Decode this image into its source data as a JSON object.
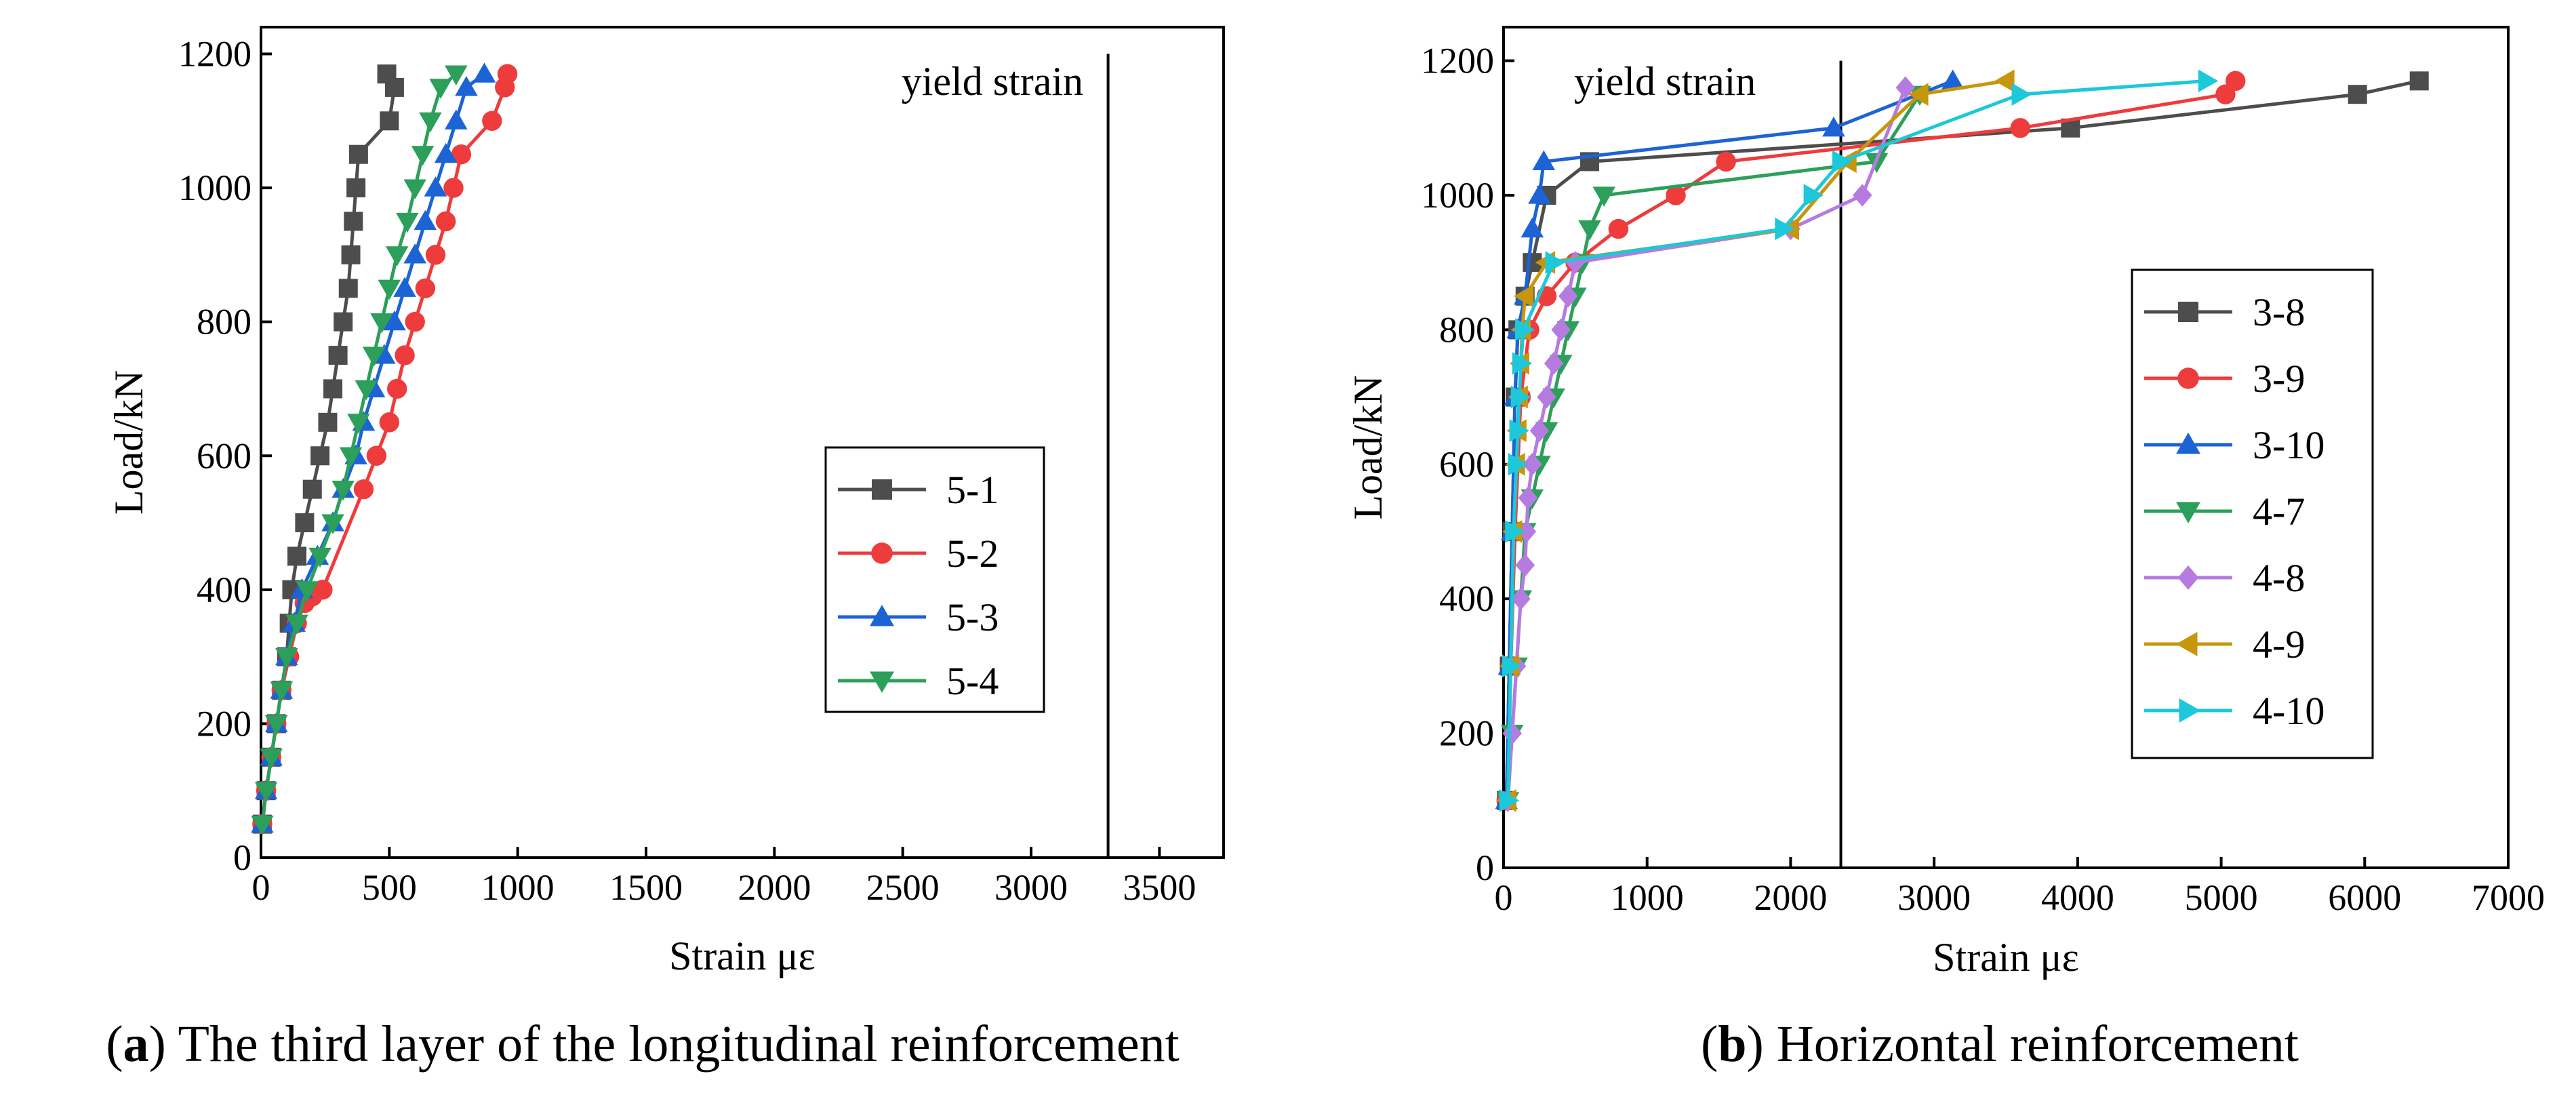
{
  "chart_data": [
    {
      "id": "a",
      "type": "line",
      "xlabel": "Strain με",
      "ylabel": "Load/kN",
      "xlim": [
        0,
        3750
      ],
      "ylim": [
        0,
        1240
      ],
      "xticks": [
        0,
        500,
        1000,
        1500,
        2000,
        2500,
        3000,
        3500
      ],
      "yticks": [
        0,
        200,
        400,
        600,
        800,
        1000,
        1200
      ],
      "annotation": "yield  strain",
      "yield_strain": 3300,
      "caption_letter": "a",
      "caption_text": " The third layer of the longitudinal reinforcement",
      "series": [
        {
          "name": "5-1",
          "color": "#4d4d4d",
          "marker": "square",
          "x": [
            5,
            20,
            40,
            60,
            80,
            100,
            110,
            120,
            140,
            170,
            200,
            230,
            260,
            280,
            300,
            320,
            340,
            350,
            360,
            370,
            380,
            500,
            520,
            490
          ],
          "y": [
            50,
            100,
            150,
            200,
            250,
            300,
            350,
            400,
            450,
            500,
            550,
            600,
            650,
            700,
            750,
            800,
            850,
            900,
            950,
            1000,
            1050,
            1100,
            1150,
            1170
          ]
        },
        {
          "name": "5-2",
          "color": "#ee3b3b",
          "marker": "circle",
          "x": [
            5,
            20,
            40,
            60,
            80,
            110,
            140,
            170,
            200,
            240,
            400,
            450,
            500,
            530,
            560,
            600,
            640,
            680,
            720,
            750,
            780,
            900,
            950,
            960
          ],
          "y": [
            50,
            100,
            150,
            200,
            250,
            300,
            350,
            380,
            390,
            400,
            550,
            600,
            650,
            700,
            750,
            800,
            850,
            900,
            950,
            1000,
            1050,
            1100,
            1150,
            1170
          ]
        },
        {
          "name": "5-3",
          "color": "#1c63d6",
          "marker": "triangle-up",
          "x": [
            5,
            20,
            40,
            60,
            80,
            100,
            130,
            160,
            220,
            280,
            320,
            370,
            400,
            440,
            480,
            520,
            560,
            600,
            640,
            680,
            720,
            760,
            800,
            870
          ],
          "y": [
            50,
            100,
            150,
            200,
            250,
            300,
            350,
            400,
            450,
            500,
            550,
            600,
            650,
            700,
            750,
            800,
            850,
            900,
            950,
            1000,
            1050,
            1100,
            1150,
            1170
          ]
        },
        {
          "name": "5-4",
          "color": "#2ca05a",
          "marker": "triangle-down",
          "x": [
            5,
            20,
            40,
            60,
            80,
            100,
            140,
            180,
            230,
            280,
            320,
            350,
            380,
            410,
            440,
            470,
            500,
            530,
            570,
            600,
            630,
            660,
            700,
            760
          ],
          "y": [
            50,
            100,
            150,
            200,
            250,
            300,
            350,
            400,
            450,
            500,
            550,
            600,
            650,
            700,
            750,
            800,
            850,
            900,
            950,
            1000,
            1050,
            1100,
            1150,
            1170
          ]
        }
      ]
    },
    {
      "id": "b",
      "type": "line",
      "xlabel": "Strain  με",
      "ylabel": "Load/kN",
      "xlim": [
        0,
        7000
      ],
      "ylim": [
        0,
        1250
      ],
      "xticks": [
        0,
        1000,
        2000,
        3000,
        4000,
        5000,
        6000,
        7000
      ],
      "yticks": [
        0,
        200,
        400,
        600,
        800,
        1000,
        1200
      ],
      "annotation": "yield strain",
      "yield_strain": 2350,
      "caption_letter": "b",
      "caption_text": " Horizontal reinforcement",
      "series": [
        {
          "name": "3-8",
          "color": "#4d4d4d",
          "marker": "square",
          "x": [
            20,
            40,
            60,
            80,
            100,
            150,
            200,
            300,
            600,
            3950,
            5950,
            6380
          ],
          "y": [
            100,
            300,
            500,
            700,
            800,
            850,
            900,
            1000,
            1050,
            1100,
            1150,
            1170
          ]
        },
        {
          "name": "3-9",
          "color": "#ee3b3b",
          "marker": "circle",
          "x": [
            20,
            50,
            80,
            120,
            180,
            300,
            500,
            800,
            1200,
            1550,
            3600,
            5030,
            5100
          ],
          "y": [
            100,
            300,
            500,
            700,
            800,
            850,
            900,
            950,
            1000,
            1050,
            1100,
            1150,
            1170
          ]
        },
        {
          "name": "3-10",
          "color": "#1c63d6",
          "marker": "triangle-up",
          "x": [
            20,
            40,
            60,
            80,
            100,
            150,
            200,
            250,
            280,
            2300,
            3130
          ],
          "y": [
            100,
            300,
            500,
            700,
            800,
            850,
            950,
            1000,
            1050,
            1100,
            1170
          ]
        },
        {
          "name": "4-7",
          "color": "#2ca05a",
          "marker": "triangle-down",
          "x": [
            30,
            60,
            90,
            120,
            150,
            200,
            250,
            300,
            350,
            400,
            450,
            500,
            550,
            600,
            700,
            2600,
            2900
          ],
          "y": [
            100,
            200,
            300,
            400,
            500,
            550,
            600,
            650,
            700,
            750,
            800,
            850,
            900,
            950,
            1000,
            1050,
            1150
          ]
        },
        {
          "name": "4-8",
          "color": "#b57be0",
          "marker": "diamond",
          "x": [
            30,
            60,
            90,
            120,
            150,
            160,
            170,
            200,
            250,
            300,
            350,
            400,
            450,
            500,
            2000,
            2500,
            2800
          ],
          "y": [
            100,
            200,
            300,
            400,
            450,
            500,
            550,
            600,
            650,
            700,
            750,
            800,
            850,
            900,
            950,
            1000,
            1160
          ]
        },
        {
          "name": "4-9",
          "color": "#c8960c",
          "marker": "triangle-left",
          "x": [
            30,
            50,
            70,
            90,
            100,
            110,
            120,
            130,
            150,
            300,
            2000,
            2400,
            2900,
            3500
          ],
          "y": [
            100,
            300,
            500,
            600,
            650,
            700,
            750,
            800,
            850,
            900,
            950,
            1050,
            1150,
            1170
          ]
        },
        {
          "name": "4-10",
          "color": "#1cc8d9",
          "marker": "triangle-right",
          "x": [
            30,
            50,
            70,
            90,
            100,
            110,
            120,
            140,
            350,
            1950,
            2150,
            2350,
            3600,
            4900
          ],
          "y": [
            100,
            300,
            500,
            600,
            650,
            700,
            750,
            800,
            900,
            950,
            1000,
            1050,
            1150,
            1170
          ]
        }
      ]
    }
  ]
}
